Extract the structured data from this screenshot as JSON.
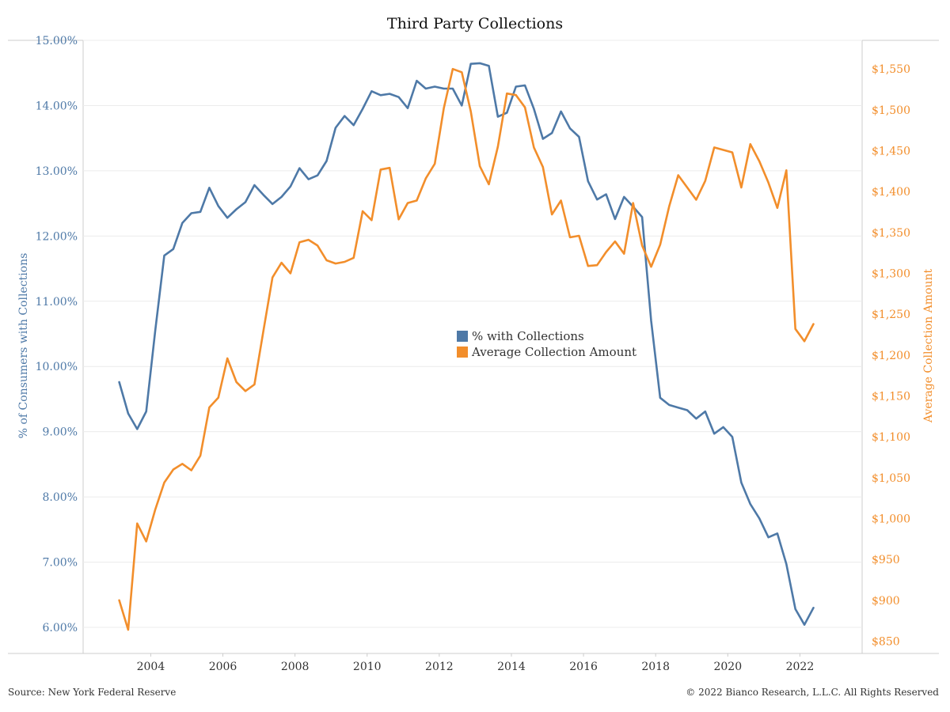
{
  "chart_data": {
    "type": "line",
    "title": "Third Party Collections",
    "y_left": {
      "label": "% of Consumers with Collections",
      "range": [
        5.6,
        15.0
      ],
      "ticks": [
        "6.00%",
        "7.00%",
        "8.00%",
        "9.00%",
        "10.00%",
        "11.00%",
        "12.00%",
        "13.00%",
        "14.00%",
        "15.00%"
      ],
      "tick_values": [
        6,
        7,
        8,
        9,
        10,
        11,
        12,
        13,
        14,
        15
      ]
    },
    "y_right": {
      "label": "Average Collection Amount",
      "range": [
        835,
        1585
      ],
      "ticks": [
        "$850",
        "$900",
        "$950",
        "$1,000",
        "$1,050",
        "$1,100",
        "$1,150",
        "$1,200",
        "$1,250",
        "$1,300",
        "$1,350",
        "$1,400",
        "$1,450",
        "$1,500",
        "$1,550"
      ],
      "tick_values": [
        850,
        900,
        950,
        1000,
        1050,
        1100,
        1150,
        1200,
        1250,
        1300,
        1350,
        1400,
        1450,
        1500,
        1550
      ]
    },
    "x_axis": {
      "range": [
        2002.0,
        2023.6
      ],
      "ticks": [
        "2004",
        "2006",
        "2008",
        "2010",
        "2012",
        "2014",
        "2016",
        "2018",
        "2020",
        "2022"
      ],
      "tick_values": [
        2003.875,
        2005.875,
        2007.875,
        2009.875,
        2011.875,
        2013.875,
        2015.875,
        2017.875,
        2019.875,
        2021.875
      ]
    },
    "x": [
      2003.0,
      2003.25,
      2003.5,
      2003.75,
      2004.0,
      2004.25,
      2004.5,
      2004.75,
      2005.0,
      2005.25,
      2005.5,
      2005.75,
      2006.0,
      2006.25,
      2006.5,
      2006.75,
      2007.0,
      2007.25,
      2007.5,
      2007.75,
      2008.0,
      2008.25,
      2008.5,
      2008.75,
      2009.0,
      2009.25,
      2009.5,
      2009.75,
      2010.0,
      2010.25,
      2010.5,
      2010.75,
      2011.0,
      2011.25,
      2011.5,
      2011.75,
      2012.0,
      2012.25,
      2012.5,
      2012.75,
      2013.0,
      2013.25,
      2013.5,
      2013.75,
      2014.0,
      2014.25,
      2014.5,
      2014.75,
      2015.0,
      2015.25,
      2015.5,
      2015.75,
      2016.0,
      2016.25,
      2016.5,
      2016.75,
      2017.0,
      2017.25,
      2017.5,
      2017.75,
      2018.0,
      2018.25,
      2018.5,
      2018.75,
      2019.0,
      2019.25,
      2019.5,
      2019.75,
      2020.0,
      2020.25,
      2020.5,
      2020.75,
      2021.0,
      2021.25,
      2021.5,
      2021.75,
      2022.0,
      2022.25
    ],
    "series": [
      {
        "name": "% with Collections",
        "axis": "left",
        "color": "#4e79a7",
        "values": [
          9.76,
          9.28,
          9.04,
          9.31,
          10.55,
          11.7,
          11.8,
          12.2,
          12.35,
          12.37,
          12.74,
          12.46,
          12.28,
          12.41,
          12.52,
          12.78,
          12.63,
          12.49,
          12.6,
          12.76,
          13.04,
          12.87,
          12.93,
          13.15,
          13.66,
          13.84,
          13.7,
          13.95,
          14.22,
          14.16,
          14.18,
          14.13,
          13.96,
          14.38,
          14.26,
          14.29,
          14.26,
          14.26,
          14.0,
          14.64,
          14.65,
          14.61,
          13.83,
          13.89,
          14.29,
          14.31,
          13.95,
          13.49,
          13.58,
          13.91,
          13.65,
          13.52,
          12.84,
          12.56,
          12.64,
          12.26,
          12.6,
          12.45,
          12.29,
          10.7,
          9.52,
          9.41,
          9.37,
          9.33,
          9.2,
          9.31,
          8.97,
          9.07,
          8.92,
          8.22,
          7.89,
          7.67,
          7.38,
          7.44,
          6.97,
          6.28,
          6.04,
          6.3
        ]
      },
      {
        "name": "Average Collection Amount",
        "axis": "right",
        "color": "#f28e2b",
        "values": [
          900,
          864,
          994,
          972,
          1011,
          1044,
          1060,
          1067,
          1059,
          1077,
          1136,
          1148,
          1196,
          1167,
          1156,
          1164,
          1230,
          1295,
          1313,
          1300,
          1338,
          1341,
          1334,
          1316,
          1312,
          1314,
          1319,
          1376,
          1365,
          1427,
          1429,
          1366,
          1386,
          1389,
          1416,
          1434,
          1502,
          1550,
          1546,
          1498,
          1431,
          1409,
          1455,
          1520,
          1518,
          1503,
          1454,
          1430,
          1372,
          1389,
          1344,
          1346,
          1309,
          1310,
          1326,
          1339,
          1324,
          1386,
          1334,
          1308,
          1335,
          1382,
          1420,
          1405,
          1390,
          1413,
          1454,
          1451,
          1448,
          1405,
          1458,
          1437,
          1411,
          1380,
          1426,
          1232,
          1217,
          1238
        ]
      }
    ],
    "legend": {
      "placement": "center",
      "entries": [
        "% with Collections",
        "Average Collection Amount"
      ]
    },
    "grid": true
  },
  "footer": {
    "source": "Source: New York Federal Reserve",
    "copyright": "© 2022 Bianco Research, L.L.C. All Rights Reserved"
  }
}
